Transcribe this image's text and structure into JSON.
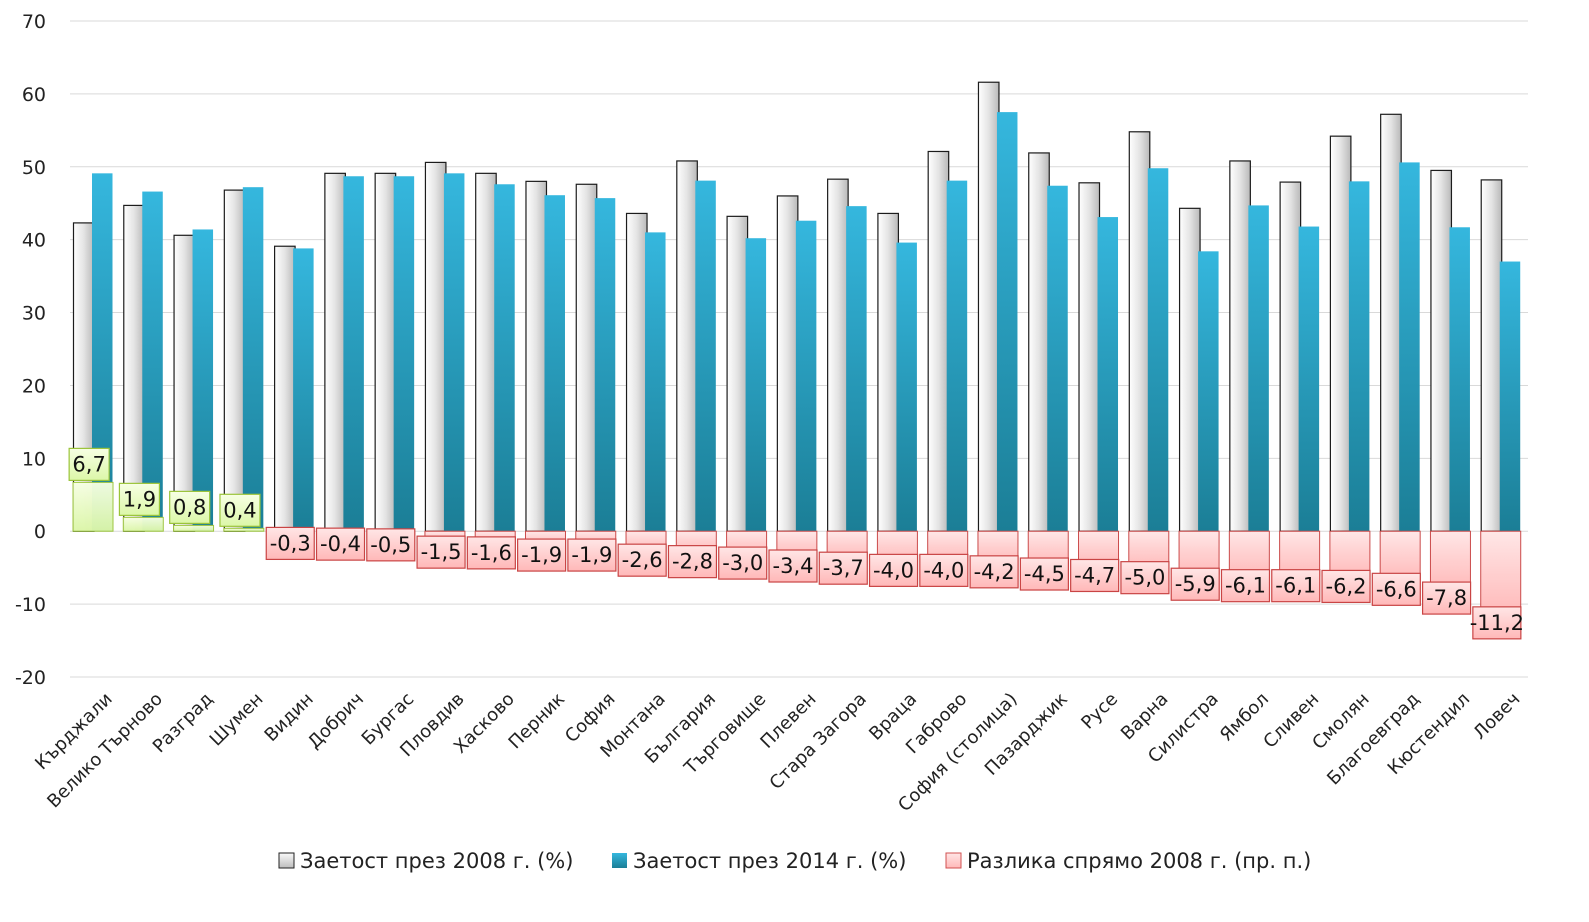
{
  "chart_data": {
    "type": "bar",
    "categories": [
      "Кърджали",
      "Велико Търново",
      "Разград",
      "Шумен",
      "Видин",
      "Добрич",
      "Бургас",
      "Пловдив",
      "Хасково",
      "Перник",
      "София",
      "Монтана",
      "България",
      "Търговище",
      "Плевен",
      "Стара Загора",
      "Враца",
      "Габрово",
      "София (столица)",
      "Пазарджик",
      "Русе",
      "Варна",
      "Силистра",
      "Ямбол",
      "Сливен",
      "Смолян",
      "Благоевград",
      "Кюстендил",
      "Ловеч"
    ],
    "series": [
      {
        "name": "Заетост през 2008 г. (%)",
        "values": [
          42.3,
          44.7,
          40.6,
          46.8,
          39.1,
          49.1,
          49.1,
          50.6,
          49.1,
          48.0,
          47.6,
          43.6,
          50.8,
          43.2,
          46.0,
          48.3,
          43.6,
          52.1,
          61.6,
          51.9,
          47.8,
          54.8,
          44.3,
          50.8,
          47.9,
          54.2,
          57.2,
          49.5,
          48.2
        ],
        "color": "#f0f0f0"
      },
      {
        "name": "Заетост през 2014 г. (%)",
        "values": [
          49.1,
          46.6,
          41.4,
          47.2,
          38.8,
          48.7,
          48.7,
          49.1,
          47.6,
          46.1,
          45.7,
          41.0,
          48.1,
          40.2,
          42.6,
          44.6,
          39.6,
          48.1,
          57.5,
          47.4,
          43.1,
          49.8,
          38.4,
          44.7,
          41.8,
          48.0,
          50.6,
          41.7,
          37.0
        ],
        "color": "#29a5cc"
      },
      {
        "name": "Разлика спрямо 2008 г. (пр. п.)",
        "values": [
          6.7,
          1.9,
          0.8,
          0.4,
          -0.3,
          -0.4,
          -0.5,
          -1.5,
          -1.6,
          -1.9,
          -1.9,
          -2.6,
          -2.8,
          -3.0,
          -3.4,
          -3.7,
          -4.0,
          -4.0,
          -4.2,
          -4.5,
          -4.7,
          -5.0,
          -5.9,
          -6.1,
          -6.1,
          -6.2,
          -6.6,
          -7.8,
          -11.2
        ],
        "labels": [
          "6,7",
          "1,9",
          "0,8",
          "0,4",
          "-0,3",
          "-0,4",
          "-0,5",
          "-1,5",
          "-1,6",
          "-1,9",
          "-1,9",
          "-2,6",
          "-2,8",
          "-3,0",
          "-3,4",
          "-3,7",
          "-4,0",
          "-4,0",
          "-4,2",
          "-4,5",
          "-4,7",
          "-5,0",
          "-5,9",
          "-6,1",
          "-6,1",
          "-6,2",
          "-6,6",
          "-7,8",
          "-11,2"
        ],
        "color_positive": "#eaffc6",
        "color_negative": "#ffd2d2"
      }
    ],
    "title": "",
    "xlabel": "",
    "ylabel": "",
    "ylim": [
      -20,
      70
    ],
    "yticks": [
      "70",
      "60",
      "50",
      "40",
      "30",
      "20",
      "10",
      "0",
      "-10",
      "-20"
    ],
    "grid": true,
    "legend": "bottom"
  }
}
